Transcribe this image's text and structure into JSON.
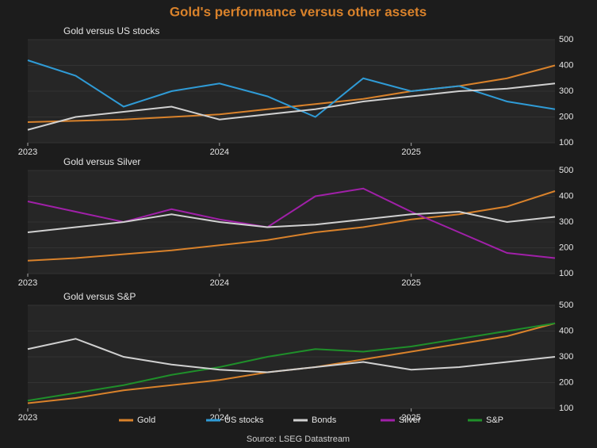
{
  "title": "Gold's performance versus other assets",
  "source": "Source: LSEG Datastream",
  "chart_data": [
    {
      "type": "line",
      "title": "Gold versus US stocks",
      "x": [
        2023,
        2023.25,
        2023.5,
        2023.75,
        2024,
        2024.25,
        2024.5,
        2024.75,
        2025,
        2025.25,
        2025.5,
        2025.75
      ],
      "xlim": [
        2023,
        2025.75
      ],
      "xticks": [
        2023,
        2024,
        2025
      ],
      "ylim": [
        100,
        500
      ],
      "yticks": [
        100,
        200,
        300,
        400,
        500
      ],
      "series": [
        {
          "name": "Gold",
          "color": "#d9822b",
          "values": [
            180,
            185,
            190,
            200,
            210,
            230,
            250,
            270,
            300,
            320,
            350,
            400
          ]
        },
        {
          "name": "US stocks",
          "color": "#2f9bd6",
          "values": [
            420,
            360,
            240,
            300,
            330,
            280,
            200,
            350,
            300,
            320,
            260,
            230
          ]
        },
        {
          "name": "Bonds",
          "color": "#d0d0d0",
          "values": [
            150,
            200,
            220,
            240,
            190,
            210,
            230,
            260,
            280,
            300,
            310,
            330
          ]
        }
      ]
    },
    {
      "type": "line",
      "title": "Gold versus Silver",
      "x": [
        2023,
        2023.25,
        2023.5,
        2023.75,
        2024,
        2024.25,
        2024.5,
        2024.75,
        2025,
        2025.25,
        2025.5,
        2025.75
      ],
      "xlim": [
        2023,
        2025.75
      ],
      "xticks": [
        2023,
        2024,
        2025
      ],
      "ylim": [
        100,
        500
      ],
      "yticks": [
        100,
        200,
        300,
        400,
        500
      ],
      "series": [
        {
          "name": "Gold",
          "color": "#d9822b",
          "values": [
            150,
            160,
            175,
            190,
            210,
            230,
            260,
            280,
            310,
            330,
            360,
            420
          ]
        },
        {
          "name": "Silver",
          "color": "#a020a8",
          "values": [
            380,
            340,
            300,
            350,
            310,
            280,
            400,
            430,
            340,
            260,
            180,
            160
          ]
        },
        {
          "name": "Bonds",
          "color": "#d0d0d0",
          "values": [
            260,
            280,
            300,
            330,
            300,
            280,
            290,
            310,
            330,
            340,
            300,
            320
          ]
        }
      ]
    },
    {
      "type": "line",
      "title": "Gold versus S&P",
      "x": [
        2023,
        2023.25,
        2023.5,
        2023.75,
        2024,
        2024.25,
        2024.5,
        2024.75,
        2025,
        2025.25,
        2025.5,
        2025.75
      ],
      "xlim": [
        2023,
        2025.75
      ],
      "xticks": [
        2023,
        2024,
        2025
      ],
      "ylim": [
        100,
        500
      ],
      "yticks": [
        100,
        200,
        300,
        400,
        500
      ],
      "series": [
        {
          "name": "Gold",
          "color": "#d9822b",
          "values": [
            120,
            140,
            170,
            190,
            210,
            240,
            260,
            290,
            320,
            350,
            380,
            430
          ]
        },
        {
          "name": "S&P",
          "color": "#1f8f2a",
          "values": [
            130,
            160,
            190,
            230,
            260,
            300,
            330,
            320,
            340,
            370,
            400,
            430
          ]
        },
        {
          "name": "Bonds",
          "color": "#d0d0d0",
          "values": [
            330,
            370,
            300,
            270,
            250,
            240,
            260,
            280,
            250,
            260,
            280,
            300
          ]
        }
      ]
    }
  ]
}
